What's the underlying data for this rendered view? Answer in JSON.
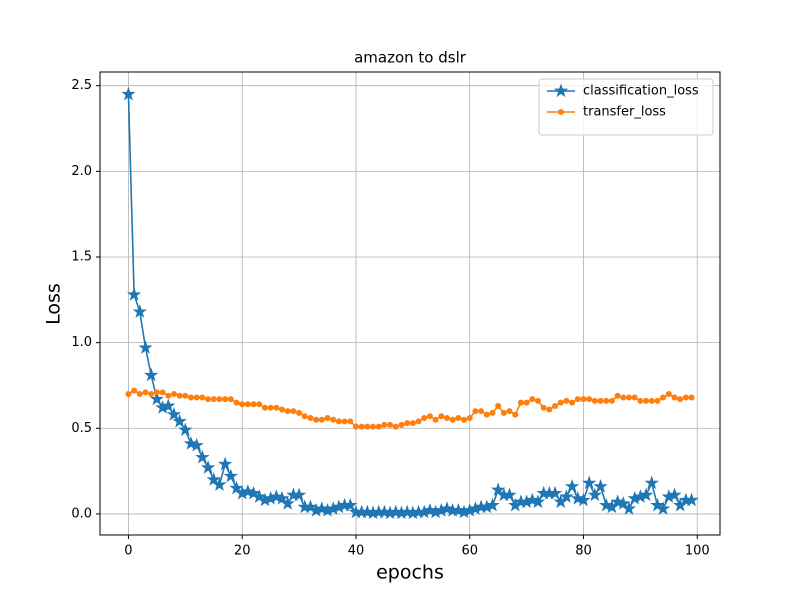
{
  "chart_data": {
    "type": "line",
    "title": "amazon to dslr",
    "x_label": "epochs",
    "y_label": "Loss",
    "x": [
      0,
      1,
      2,
      3,
      4,
      5,
      6,
      7,
      8,
      9,
      10,
      11,
      12,
      13,
      14,
      15,
      16,
      17,
      18,
      19,
      20,
      21,
      22,
      23,
      24,
      25,
      26,
      27,
      28,
      29,
      30,
      31,
      32,
      33,
      34,
      35,
      36,
      37,
      38,
      39,
      40,
      41,
      42,
      43,
      44,
      45,
      46,
      47,
      48,
      49,
      50,
      51,
      52,
      53,
      54,
      55,
      56,
      57,
      58,
      59,
      60,
      61,
      62,
      63,
      64,
      65,
      66,
      67,
      68,
      69,
      70,
      71,
      72,
      73,
      74,
      75,
      76,
      77,
      78,
      79,
      80,
      81,
      82,
      83,
      84,
      85,
      86,
      87,
      88,
      89,
      90,
      91,
      92,
      93,
      94,
      95,
      96,
      97,
      98,
      99
    ],
    "series": [
      {
        "name": "classification_loss",
        "color": "#1f77b4",
        "marker": "star",
        "values": [
          2.45,
          1.28,
          1.18,
          0.97,
          0.81,
          0.67,
          0.62,
          0.63,
          0.58,
          0.54,
          0.49,
          0.41,
          0.4,
          0.33,
          0.27,
          0.2,
          0.17,
          0.29,
          0.22,
          0.15,
          0.12,
          0.13,
          0.12,
          0.1,
          0.08,
          0.09,
          0.1,
          0.09,
          0.06,
          0.11,
          0.11,
          0.04,
          0.04,
          0.02,
          0.03,
          0.02,
          0.03,
          0.04,
          0.05,
          0.05,
          0.01,
          0.01,
          0.01,
          0.005,
          0.01,
          0.01,
          0.005,
          0.01,
          0.005,
          0.01,
          0.005,
          0.01,
          0.01,
          0.02,
          0.01,
          0.02,
          0.03,
          0.02,
          0.02,
          0.01,
          0.02,
          0.03,
          0.04,
          0.04,
          0.05,
          0.14,
          0.11,
          0.11,
          0.05,
          0.07,
          0.07,
          0.08,
          0.07,
          0.12,
          0.12,
          0.12,
          0.07,
          0.1,
          0.16,
          0.09,
          0.08,
          0.18,
          0.11,
          0.16,
          0.05,
          0.04,
          0.07,
          0.06,
          0.03,
          0.09,
          0.1,
          0.11,
          0.18,
          0.05,
          0.03,
          0.1,
          0.11,
          0.05,
          0.08,
          0.08
        ]
      },
      {
        "name": "transfer_loss",
        "color": "#ff7f0e",
        "marker": "circle",
        "values": [
          0.7,
          0.72,
          0.7,
          0.71,
          0.7,
          0.71,
          0.71,
          0.69,
          0.7,
          0.69,
          0.69,
          0.68,
          0.68,
          0.68,
          0.67,
          0.67,
          0.67,
          0.67,
          0.67,
          0.65,
          0.64,
          0.64,
          0.64,
          0.64,
          0.62,
          0.62,
          0.62,
          0.61,
          0.6,
          0.6,
          0.59,
          0.57,
          0.56,
          0.55,
          0.55,
          0.56,
          0.55,
          0.54,
          0.54,
          0.54,
          0.51,
          0.51,
          0.51,
          0.51,
          0.51,
          0.52,
          0.52,
          0.51,
          0.52,
          0.53,
          0.53,
          0.54,
          0.56,
          0.57,
          0.55,
          0.57,
          0.56,
          0.55,
          0.56,
          0.55,
          0.56,
          0.6,
          0.6,
          0.58,
          0.59,
          0.63,
          0.59,
          0.6,
          0.58,
          0.65,
          0.65,
          0.67,
          0.66,
          0.62,
          0.61,
          0.63,
          0.65,
          0.66,
          0.65,
          0.67,
          0.67,
          0.67,
          0.66,
          0.66,
          0.66,
          0.66,
          0.69,
          0.68,
          0.68,
          0.68,
          0.66,
          0.66,
          0.66,
          0.66,
          0.68,
          0.7,
          0.68,
          0.67,
          0.68,
          0.68
        ]
      }
    ],
    "xlim": [
      -5,
      104
    ],
    "ylim": [
      -0.123,
      2.58
    ],
    "xticks": [
      0,
      20,
      40,
      60,
      80,
      100
    ],
    "yticks": [
      {
        "value": 0,
        "label": "0.0"
      },
      0.5,
      {
        "value": 1,
        "label": "1.0"
      },
      1.5,
      {
        "value": 2,
        "label": "2.0"
      },
      2.5
    ],
    "grid": true,
    "legend": "upper right"
  }
}
